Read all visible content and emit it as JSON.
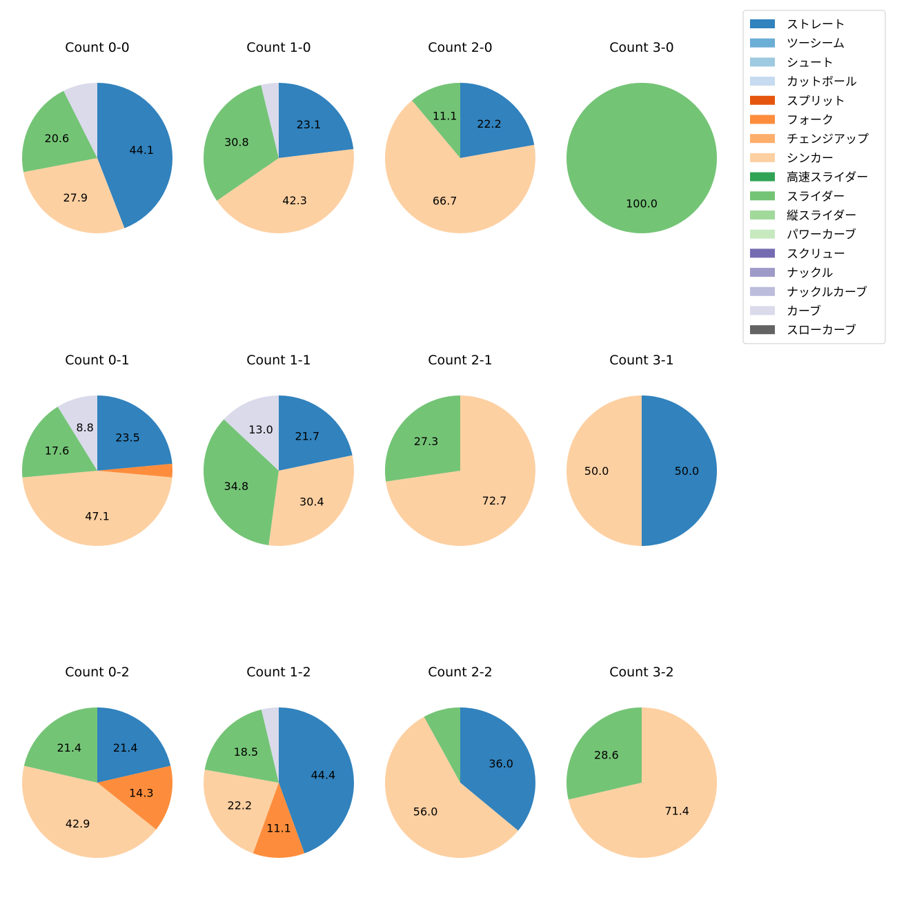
{
  "pitch_types": [
    {
      "name": "ストレート",
      "color": "#3182bd"
    },
    {
      "name": "ツーシーム",
      "color": "#6baed6"
    },
    {
      "name": "シュート",
      "color": "#9ecae1"
    },
    {
      "name": "カットボール",
      "color": "#c6dbef"
    },
    {
      "name": "スプリット",
      "color": "#e6550d"
    },
    {
      "name": "フォーク",
      "color": "#fd8d3c"
    },
    {
      "name": "チェンジアップ",
      "color": "#fdae6b"
    },
    {
      "name": "シンカー",
      "color": "#fdd0a2"
    },
    {
      "name": "高速スライダー",
      "color": "#31a354"
    },
    {
      "name": "スライダー",
      "color": "#74c476"
    },
    {
      "name": "縦スライダー",
      "color": "#a1d99b"
    },
    {
      "name": "パワーカーブ",
      "color": "#c7e9c0"
    },
    {
      "name": "スクリュー",
      "color": "#756bb1"
    },
    {
      "name": "ナックル",
      "color": "#9e9ac8"
    },
    {
      "name": "ナックルカーブ",
      "color": "#bcbddc"
    },
    {
      "name": "カーブ",
      "color": "#dadaeb"
    },
    {
      "name": "スローカーブ",
      "color": "#636363"
    }
  ],
  "chart_data": [
    {
      "type": "pie",
      "title": "Count 0-0",
      "labels": [
        "ストレート",
        "シンカー",
        "スライダー",
        "カーブ"
      ],
      "values": [
        44.1,
        27.9,
        20.6,
        7.4
      ],
      "shown_labels": [
        "44.1",
        "27.9",
        "20.6",
        ""
      ]
    },
    {
      "type": "pie",
      "title": "Count 1-0",
      "labels": [
        "ストレート",
        "シンカー",
        "スライダー",
        "カーブ"
      ],
      "values": [
        23.1,
        42.3,
        30.8,
        3.8
      ],
      "shown_labels": [
        "23.1",
        "42.3",
        "30.8",
        ""
      ]
    },
    {
      "type": "pie",
      "title": "Count 2-0",
      "labels": [
        "ストレート",
        "シンカー",
        "スライダー"
      ],
      "values": [
        22.2,
        66.7,
        11.1
      ],
      "shown_labels": [
        "22.2",
        "66.7",
        "11.1"
      ]
    },
    {
      "type": "pie",
      "title": "Count 3-0",
      "labels": [
        "スライダー"
      ],
      "values": [
        100.0
      ],
      "shown_labels": [
        "100.0"
      ]
    },
    {
      "type": "pie",
      "title": "Count 0-1",
      "labels": [
        "ストレート",
        "フォーク",
        "シンカー",
        "スライダー",
        "カーブ"
      ],
      "values": [
        23.5,
        2.9,
        47.1,
        17.6,
        8.8
      ],
      "shown_labels": [
        "23.5",
        "",
        "47.1",
        "17.6",
        "8.8"
      ]
    },
    {
      "type": "pie",
      "title": "Count 1-1",
      "labels": [
        "ストレート",
        "シンカー",
        "スライダー",
        "カーブ"
      ],
      "values": [
        21.7,
        30.4,
        34.8,
        13.0
      ],
      "shown_labels": [
        "21.7",
        "30.4",
        "34.8",
        "13.0"
      ]
    },
    {
      "type": "pie",
      "title": "Count 2-1",
      "labels": [
        "シンカー",
        "スライダー"
      ],
      "values": [
        72.7,
        27.3
      ],
      "shown_labels": [
        "72.7",
        "27.3"
      ]
    },
    {
      "type": "pie",
      "title": "Count 3-1",
      "labels": [
        "ストレート",
        "シンカー"
      ],
      "values": [
        50.0,
        50.0
      ],
      "shown_labels": [
        "50.0",
        "50.0"
      ]
    },
    {
      "type": "pie",
      "title": "Count 0-2",
      "labels": [
        "ストレート",
        "フォーク",
        "シンカー",
        "スライダー"
      ],
      "values": [
        21.4,
        14.3,
        42.9,
        21.4
      ],
      "shown_labels": [
        "21.4",
        "14.3",
        "42.9",
        "21.4"
      ]
    },
    {
      "type": "pie",
      "title": "Count 1-2",
      "labels": [
        "ストレート",
        "フォーク",
        "シンカー",
        "スライダー",
        "カーブ"
      ],
      "values": [
        44.4,
        11.1,
        22.2,
        18.5,
        3.7
      ],
      "shown_labels": [
        "44.4",
        "11.1",
        "22.2",
        "18.5",
        ""
      ]
    },
    {
      "type": "pie",
      "title": "Count 2-2",
      "labels": [
        "ストレート",
        "シンカー",
        "スライダー"
      ],
      "values": [
        36.0,
        56.0,
        8.0
      ],
      "shown_labels": [
        "36.0",
        "56.0",
        ""
      ]
    },
    {
      "type": "pie",
      "title": "Count 3-2",
      "labels": [
        "シンカー",
        "スライダー"
      ],
      "values": [
        71.4,
        28.6
      ],
      "shown_labels": [
        "71.4",
        "28.6"
      ]
    }
  ]
}
